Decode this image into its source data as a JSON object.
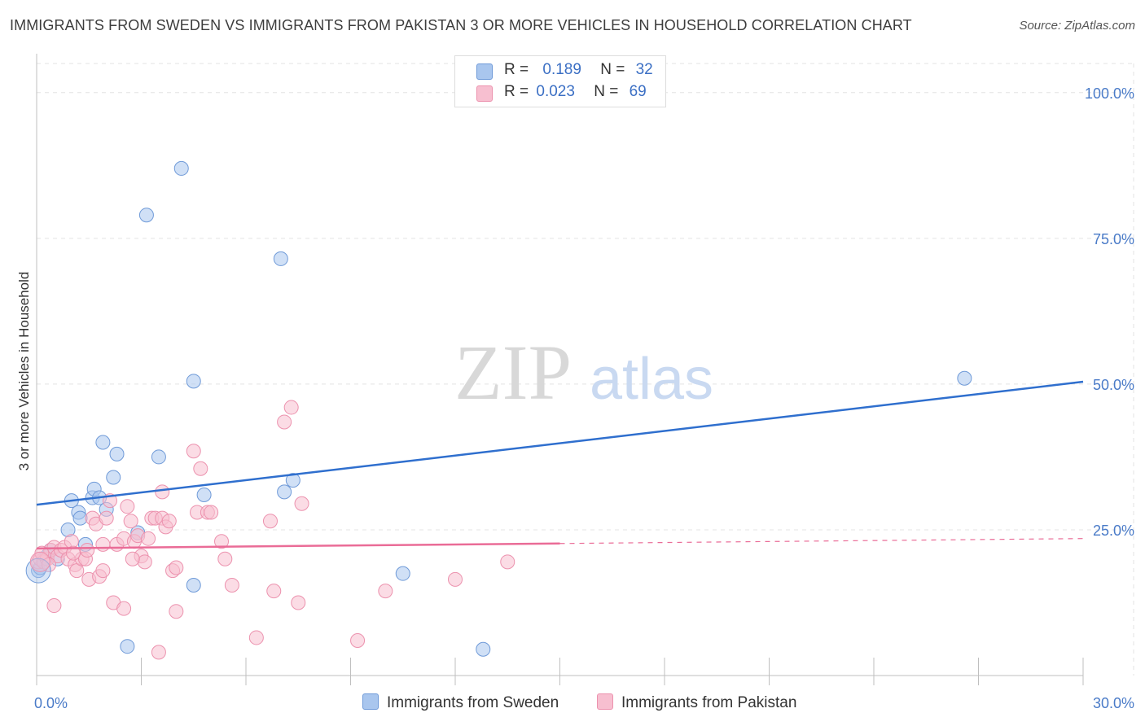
{
  "title": "IMMIGRANTS FROM SWEDEN VS IMMIGRANTS FROM PAKISTAN 3 OR MORE VEHICLES IN HOUSEHOLD CORRELATION CHART",
  "source": "Source: ZipAtlas.com",
  "watermark": {
    "zip": "ZIP",
    "atlas": "atlas"
  },
  "legend": {
    "rows": [
      {
        "r_label": "R =",
        "r_value": "0.189",
        "n_label": "N =",
        "n_value": "32",
        "color": "#a9c6ee",
        "border": "#6f9ad8"
      },
      {
        "r_label": "R =",
        "r_value": "0.023",
        "n_label": "N =",
        "n_value": "69",
        "color": "#f7bfd0",
        "border": "#ec92ae"
      }
    ]
  },
  "bottom_legend": [
    {
      "label": "Immigrants from Sweden",
      "color": "#a9c6ee",
      "border": "#6f9ad8"
    },
    {
      "label": "Immigrants from Pakistan",
      "color": "#f7bfd0",
      "border": "#ec92ae"
    }
  ],
  "chart_data": {
    "type": "scatter",
    "xlabel": "",
    "ylabel": "3 or more Vehicles in Household",
    "xlim": [
      0,
      30
    ],
    "ylim": [
      0,
      105
    ],
    "x_tick_labels": [
      {
        "value": 0,
        "label": "0.0%"
      },
      {
        "value": 30,
        "label": "30.0%"
      }
    ],
    "y_tick_labels": [
      {
        "value": 25,
        "label": "25.0%"
      },
      {
        "value": 50,
        "label": "50.0%"
      },
      {
        "value": 75,
        "label": "75.0%"
      },
      {
        "value": 100,
        "label": "100.0%"
      }
    ],
    "grid": true,
    "series": [
      {
        "name": "Immigrants from Sweden",
        "color": "#6f9ad8",
        "fill": "#a9c6ee",
        "line_color": "#2f6fce",
        "trend": {
          "x0": 0,
          "y0": 29.3,
          "x1": 30,
          "y1": 50.4,
          "solid_until": 30
        },
        "points": [
          [
            0.05,
            18.0
          ],
          [
            0.2,
            20.0
          ],
          [
            0.3,
            20.5
          ],
          [
            0.4,
            21.5
          ],
          [
            0.6,
            20.0
          ],
          [
            0.9,
            25.0
          ],
          [
            1.0,
            30.0
          ],
          [
            1.2,
            28.0
          ],
          [
            1.25,
            27.0
          ],
          [
            1.4,
            22.5
          ],
          [
            1.6,
            30.5
          ],
          [
            1.65,
            32.0
          ],
          [
            1.8,
            30.5
          ],
          [
            2.0,
            28.5
          ],
          [
            2.2,
            34.0
          ],
          [
            2.3,
            38.0
          ],
          [
            1.9,
            40.0
          ],
          [
            2.6,
            5.0
          ],
          [
            2.9,
            24.5
          ],
          [
            3.15,
            79.0
          ],
          [
            3.5,
            37.5
          ],
          [
            4.15,
            87.0
          ],
          [
            4.5,
            15.5
          ],
          [
            4.5,
            50.5
          ],
          [
            4.8,
            31.0
          ],
          [
            7.0,
            71.5
          ],
          [
            7.1,
            31.5
          ],
          [
            7.35,
            33.5
          ],
          [
            10.5,
            17.5
          ],
          [
            12.8,
            4.5
          ],
          [
            26.6,
            51.0
          ],
          [
            0.1,
            18.5
          ]
        ]
      },
      {
        "name": "Immigrants from Pakistan",
        "color": "#ec92ae",
        "fill": "#f7bfd0",
        "line_color": "#ea6c97",
        "trend": {
          "x0": 0,
          "y0": 21.8,
          "x1": 30,
          "y1": 23.5,
          "solid_until": 15
        },
        "points": [
          [
            0.05,
            19.5
          ],
          [
            0.1,
            20.0
          ],
          [
            0.2,
            19.5
          ],
          [
            0.3,
            20.0
          ],
          [
            0.4,
            21.5
          ],
          [
            0.5,
            22.0
          ],
          [
            0.5,
            12.0
          ],
          [
            0.6,
            20.5
          ],
          [
            0.7,
            21.5
          ],
          [
            0.8,
            22.0
          ],
          [
            0.9,
            20.0
          ],
          [
            1.0,
            23.0
          ],
          [
            1.1,
            19.0
          ],
          [
            1.15,
            18.0
          ],
          [
            1.3,
            20.0
          ],
          [
            1.4,
            20.0
          ],
          [
            1.45,
            21.5
          ],
          [
            1.5,
            16.5
          ],
          [
            1.6,
            27.0
          ],
          [
            1.7,
            26.0
          ],
          [
            1.8,
            17.0
          ],
          [
            1.9,
            22.5
          ],
          [
            1.9,
            18.0
          ],
          [
            2.0,
            27.0
          ],
          [
            2.1,
            30.0
          ],
          [
            2.2,
            12.5
          ],
          [
            2.3,
            22.5
          ],
          [
            2.5,
            11.5
          ],
          [
            2.5,
            23.5
          ],
          [
            2.6,
            29.0
          ],
          [
            2.7,
            26.5
          ],
          [
            2.8,
            23.0
          ],
          [
            2.9,
            24.0
          ],
          [
            3.0,
            20.5
          ],
          [
            3.1,
            19.5
          ],
          [
            3.2,
            23.5
          ],
          [
            3.3,
            27.0
          ],
          [
            3.4,
            27.0
          ],
          [
            3.5,
            4.0
          ],
          [
            3.6,
            27.0
          ],
          [
            3.6,
            31.5
          ],
          [
            3.7,
            25.5
          ],
          [
            3.8,
            26.5
          ],
          [
            3.9,
            18.0
          ],
          [
            4.0,
            18.5
          ],
          [
            4.0,
            11.0
          ],
          [
            4.5,
            38.5
          ],
          [
            4.6,
            28.0
          ],
          [
            4.7,
            35.5
          ],
          [
            4.9,
            28.0
          ],
          [
            5.0,
            28.0
          ],
          [
            5.3,
            23.0
          ],
          [
            5.4,
            20.0
          ],
          [
            5.6,
            15.5
          ],
          [
            6.3,
            6.5
          ],
          [
            6.7,
            26.5
          ],
          [
            6.8,
            14.5
          ],
          [
            7.1,
            43.5
          ],
          [
            7.3,
            46.0
          ],
          [
            7.5,
            12.5
          ],
          [
            7.6,
            29.5
          ],
          [
            9.2,
            6.0
          ],
          [
            10.0,
            14.5
          ],
          [
            12.0,
            16.5
          ],
          [
            13.5,
            19.5
          ],
          [
            0.15,
            21.0
          ],
          [
            0.35,
            19.0
          ],
          [
            1.05,
            21.0
          ],
          [
            2.75,
            20.0
          ]
        ]
      }
    ]
  }
}
